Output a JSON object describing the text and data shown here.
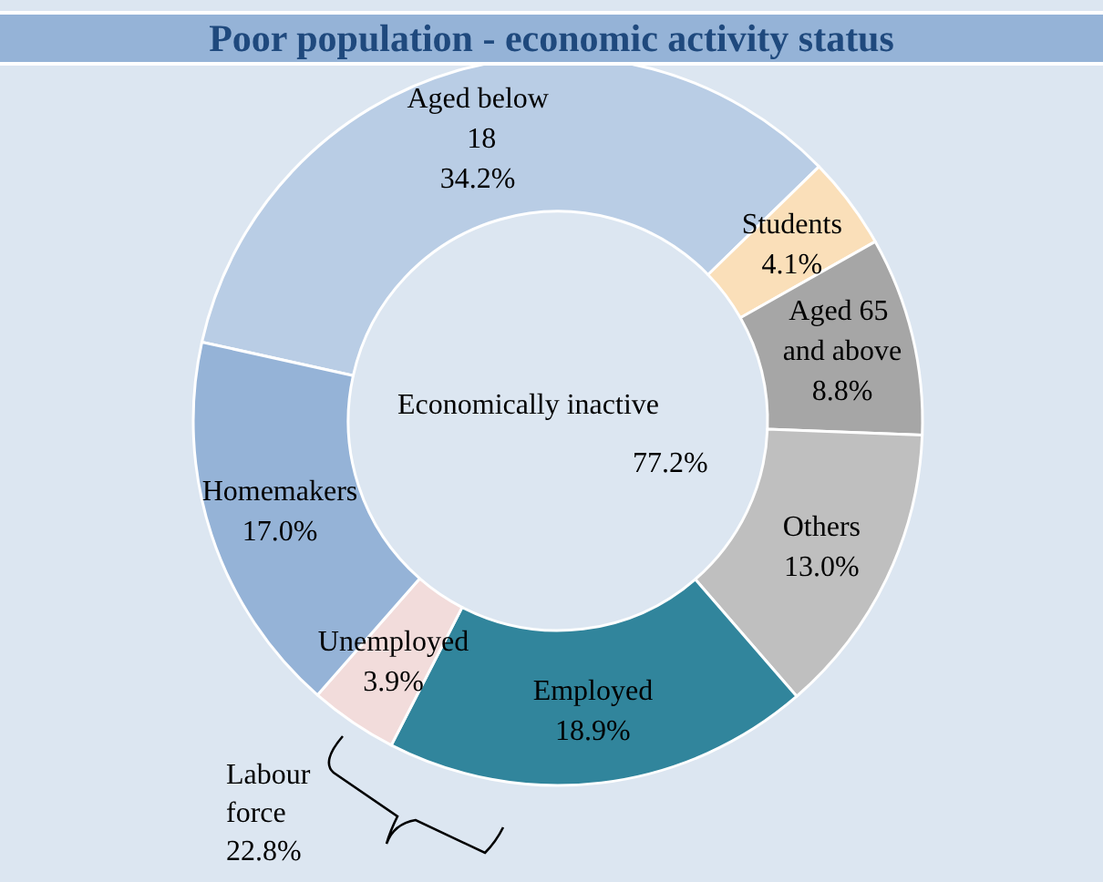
{
  "chart_data": {
    "type": "donut",
    "title": "Poor population - economic activity status",
    "categories": [
      "Aged below 18",
      "Students",
      "Aged 65 and above",
      "Others",
      "Employed",
      "Unemployed",
      "Homemakers"
    ],
    "values": [
      34.2,
      4.1,
      8.8,
      13.0,
      18.9,
      3.9,
      17.0
    ],
    "value_labels": [
      "34.2%",
      "4.1%",
      "8.8%",
      "13.0%",
      "18.9%",
      "3.9%",
      "17.0%"
    ],
    "colors": [
      "#b9cde5",
      "#fadfb9",
      "#a6a6a6",
      "#bfbfbf",
      "#31859c",
      "#f2dcdb",
      "#95b3d7"
    ],
    "annotations": [
      "Economically inactive",
      "77.2%",
      "Labour force 22.8%"
    ],
    "legend": false
  }
}
